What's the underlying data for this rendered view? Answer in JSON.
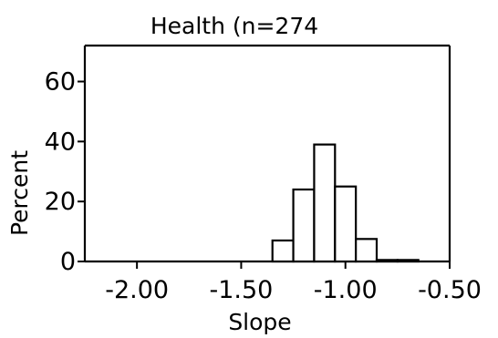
{
  "chart_data": {
    "type": "bar",
    "title": "Health (n=274",
    "xlabel": "Slope",
    "ylabel": "Percent",
    "xlim": [
      -2.25,
      -0.5
    ],
    "ylim": [
      0,
      72
    ],
    "x_ticks": [
      {
        "value": -2.0,
        "label": "-2.00"
      },
      {
        "value": -1.5,
        "label": "-1.50"
      },
      {
        "value": -1.0,
        "label": "-1.00"
      },
      {
        "value": -0.5,
        "label": "-0.50"
      }
    ],
    "y_ticks": [
      {
        "value": 0,
        "label": "0"
      },
      {
        "value": 20,
        "label": "20"
      },
      {
        "value": 40,
        "label": "40"
      },
      {
        "value": 60,
        "label": "60"
      }
    ],
    "bin_width": 0.1,
    "bins": [
      {
        "start": -1.35,
        "end": -1.25,
        "value": 7
      },
      {
        "start": -1.25,
        "end": -1.15,
        "value": 24
      },
      {
        "start": -1.15,
        "end": -1.05,
        "value": 39
      },
      {
        "start": -1.05,
        "end": -0.95,
        "value": 25
      },
      {
        "start": -0.95,
        "end": -0.85,
        "value": 7.5
      },
      {
        "start": -0.85,
        "end": -0.75,
        "value": 0.5
      },
      {
        "start": -0.75,
        "end": -0.65,
        "value": 0.5
      }
    ],
    "grid": false,
    "colors": {
      "bar_fill": "#ffffff",
      "stroke": "#000000"
    }
  }
}
